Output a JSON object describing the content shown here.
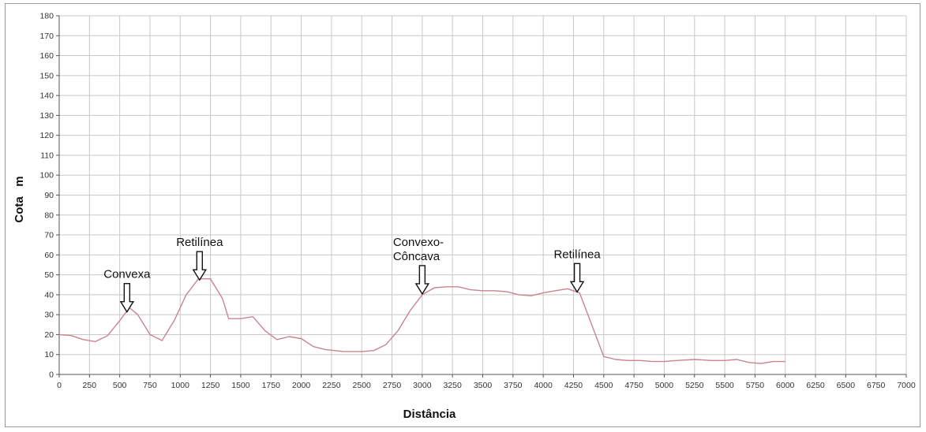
{
  "chart_data": {
    "type": "line",
    "xlabel": "Distância",
    "ylabel": "Cota   m",
    "xlim": [
      0,
      7000
    ],
    "ylim": [
      0,
      180
    ],
    "xticks": [
      0,
      250,
      500,
      750,
      1000,
      1250,
      1500,
      1750,
      2000,
      2250,
      2500,
      2750,
      3000,
      3250,
      3500,
      3750,
      4000,
      4250,
      4500,
      4750,
      5000,
      5250,
      5500,
      5750,
      6000,
      6250,
      6500,
      6750,
      7000
    ],
    "yticks": [
      0,
      10,
      20,
      30,
      40,
      50,
      60,
      70,
      80,
      90,
      100,
      110,
      120,
      130,
      140,
      150,
      160,
      170,
      180
    ],
    "grid": true,
    "series": [
      {
        "color": "#c9848f",
        "x": [
          0,
          100,
          200,
          300,
          400,
          500,
          580,
          650,
          750,
          850,
          950,
          1050,
          1150,
          1250,
          1350,
          1400,
          1500,
          1600,
          1700,
          1800,
          1900,
          2000,
          2100,
          2200,
          2350,
          2500,
          2600,
          2700,
          2800,
          2900,
          3000,
          3100,
          3200,
          3300,
          3400,
          3500,
          3600,
          3700,
          3800,
          3900,
          4000,
          4100,
          4200,
          4300,
          4400,
          4500,
          4600,
          4700,
          4800,
          4900,
          5000,
          5100,
          5250,
          5400,
          5500,
          5600,
          5700,
          5800,
          5900,
          6000
        ],
        "y": [
          20,
          19.5,
          17.5,
          16.5,
          19.5,
          27,
          33.5,
          30,
          20,
          17,
          27,
          40,
          48,
          48,
          38,
          28,
          28,
          29,
          22,
          17.5,
          19,
          18,
          14,
          12.5,
          11.5,
          11.5,
          12,
          15,
          22,
          32,
          40,
          43.5,
          44,
          44,
          42.5,
          42,
          42,
          41.5,
          40,
          39.5,
          41,
          42,
          43,
          41,
          25,
          9,
          7.5,
          7,
          7,
          6.5,
          6.5,
          7,
          7.5,
          7,
          7,
          7.5,
          6,
          5.5,
          6.5,
          6.5
        ]
      }
    ],
    "annotations": [
      {
        "text": "Convexa",
        "x": 560,
        "y": 31
      },
      {
        "text": "Retilínea",
        "x": 1160,
        "y": 47
      },
      {
        "text": "Convexo-\nCôncava",
        "x": 3000,
        "y": 40
      },
      {
        "text": "Retilínea",
        "x": 4280,
        "y": 41
      }
    ]
  }
}
